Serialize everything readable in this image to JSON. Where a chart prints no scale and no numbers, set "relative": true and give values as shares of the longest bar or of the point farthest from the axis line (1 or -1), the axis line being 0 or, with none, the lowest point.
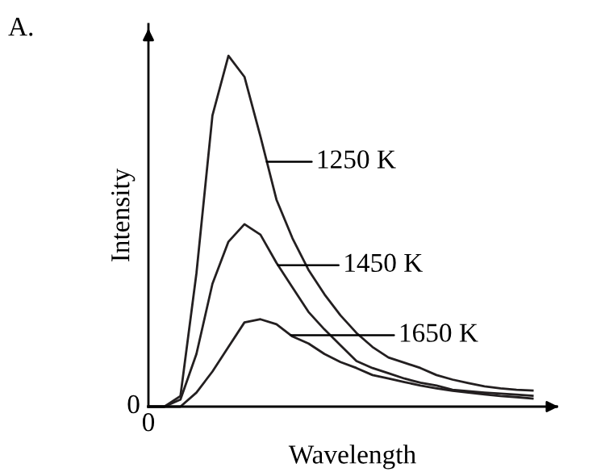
{
  "chart_data": {
    "type": "line",
    "relative": true,
    "xlabel": "Wavelength",
    "ylabel": "Intensity",
    "categories": [
      null,
      null,
      null,
      null,
      null,
      null,
      null,
      null,
      null,
      null,
      null,
      null,
      null,
      null,
      null,
      null,
      null,
      null,
      null,
      null,
      null,
      null,
      null,
      null,
      null
    ],
    "annotations": [
      "A.",
      "0",
      "0",
      "1250 K",
      "1450 K",
      "1650 K"
    ],
    "series": [
      {
        "color": "#231f20",
        "values": [
          0,
          0,
          0.03,
          0.38,
          0.83,
          1,
          0.94,
          0.77,
          0.59,
          0.48,
          0.39,
          0.32,
          0.26,
          0.21,
          0.17,
          0.14,
          0.125,
          0.11,
          0.09,
          0.077,
          0.067,
          0.058,
          0.052,
          0.048,
          0.046
        ]
      },
      {
        "color": "#231f20",
        "values": [
          0,
          0,
          0.02,
          0.15,
          0.35,
          0.47,
          0.52,
          0.49,
          0.41,
          0.34,
          0.27,
          0.22,
          0.175,
          0.13,
          0.11,
          0.095,
          0.08,
          0.068,
          0.06,
          0.048,
          0.044,
          0.04,
          0.037,
          0.034,
          0.031
        ]
      },
      {
        "color": "#231f20",
        "values": [
          0,
          0,
          0,
          0.04,
          0.1,
          0.17,
          0.24,
          0.249,
          0.235,
          0.2,
          0.18,
          0.15,
          0.127,
          0.11,
          0.09,
          0.08,
          0.07,
          0.06,
          0.052,
          0.045,
          0.04,
          0.035,
          0.03,
          0.027,
          0.023
        ]
      }
    ],
    "marker": "none",
    "line_style": "solid"
  }
}
